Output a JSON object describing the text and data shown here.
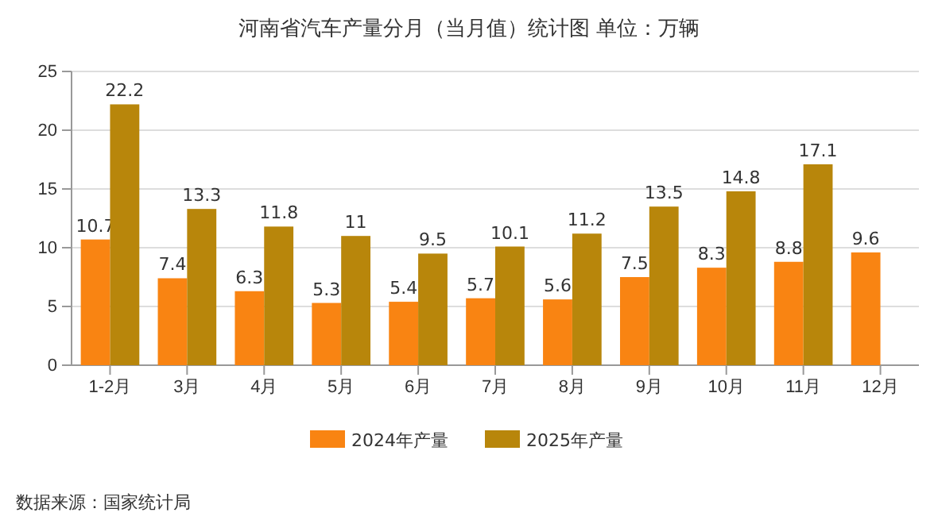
{
  "chart_data": {
    "type": "bar",
    "title": "河南省汽车产量分月（当月值）统计图  单位：万辆",
    "categories": [
      "1-2月",
      "3月",
      "4月",
      "5月",
      "6月",
      "7月",
      "8月",
      "9月",
      "10月",
      "11月",
      "12月"
    ],
    "series": [
      {
        "name": "2024年产量",
        "color": "#f98412",
        "values": [
          10.7,
          7.4,
          6.3,
          5.3,
          5.4,
          5.7,
          5.6,
          7.5,
          8.3,
          8.8,
          9.6
        ]
      },
      {
        "name": "2025年产量",
        "color": "#b8860b",
        "values": [
          22.2,
          13.3,
          11.8,
          11,
          9.5,
          10.1,
          11.2,
          13.5,
          14.8,
          17.1,
          null
        ]
      }
    ],
    "ylim": [
      0,
      25
    ],
    "yticks": [
      0,
      5,
      10,
      15,
      20,
      25
    ],
    "grid": "y",
    "legend": "bottom",
    "data_labels": true,
    "annotations": [
      "数据来源：国家统计局"
    ]
  }
}
